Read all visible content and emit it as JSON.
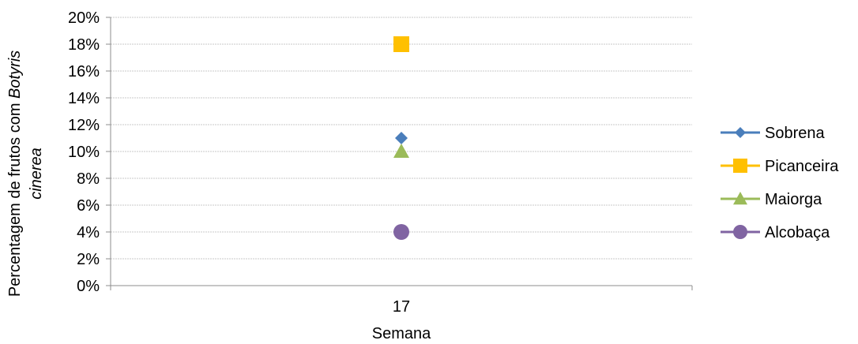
{
  "chart_data": {
    "type": "scatter",
    "categories": [
      "17"
    ],
    "xlabel": "Semana",
    "ylabel_parts": [
      "Percentagem de frutos com ",
      "Botyris",
      "cinerea"
    ],
    "ylim": [
      0,
      20
    ],
    "yticks": [
      "0%",
      "2%",
      "4%",
      "6%",
      "8%",
      "10%",
      "12%",
      "14%",
      "16%",
      "18%",
      "20%"
    ],
    "grid": true,
    "legend_position": "right",
    "series": [
      {
        "name": "Sobrena",
        "values": [
          11
        ],
        "color": "#4a7ebb",
        "marker": "diamond"
      },
      {
        "name": "Picanceira",
        "values": [
          18
        ],
        "color": "#ffc000",
        "marker": "square"
      },
      {
        "name": "Maiorga",
        "values": [
          10
        ],
        "color": "#9bbb59",
        "marker": "triangle"
      },
      {
        "name": "Alcobaça",
        "values": [
          4
        ],
        "color": "#8064a2",
        "marker": "circle"
      }
    ]
  }
}
